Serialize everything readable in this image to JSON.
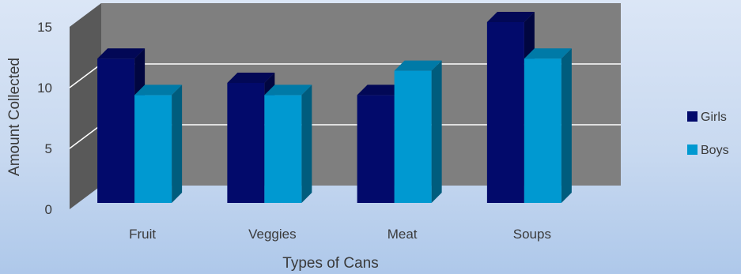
{
  "chart_data": {
    "type": "bar",
    "title": "",
    "xlabel": "Types of Cans",
    "ylabel": "Amount Collected",
    "categories": [
      "Fruit",
      "Veggies",
      "Meat",
      "Soups"
    ],
    "series": [
      {
        "name": "Girls",
        "values": [
          12,
          10,
          9,
          15
        ],
        "color": "#020a6b"
      },
      {
        "name": "Boys",
        "values": [
          9,
          9,
          11,
          12
        ],
        "color": "#0099d1"
      }
    ],
    "ylim": [
      0,
      15
    ],
    "yticks": [
      "0",
      "5",
      "10",
      "15"
    ],
    "grid": true,
    "legend_position": "right",
    "style": "3d-clustered-column",
    "wall_color": "#7f7f7f",
    "side_wall_color": "#595959"
  }
}
